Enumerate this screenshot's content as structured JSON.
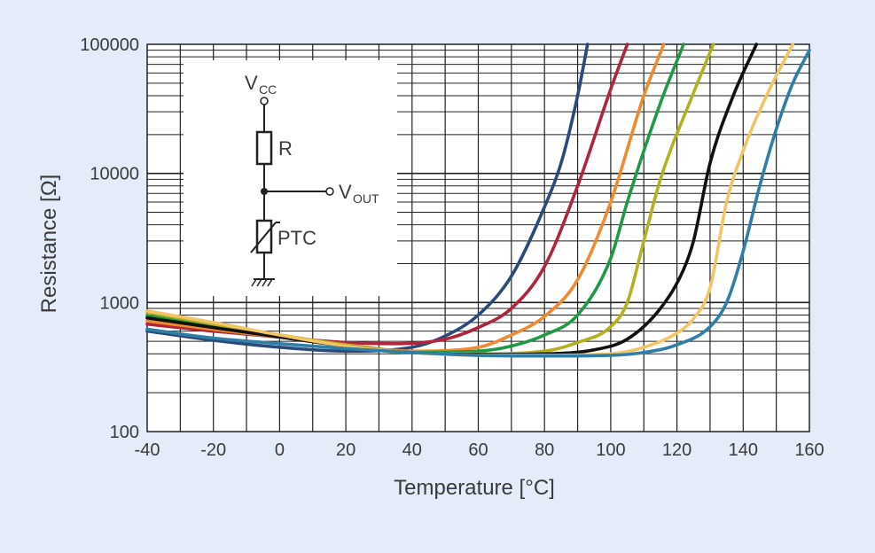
{
  "chart_data": {
    "type": "line",
    "title": "",
    "xlabel": "Temperature [°C]",
    "ylabel": "Resistance [Ω]",
    "xlim": [
      -40,
      160
    ],
    "ylim": [
      100,
      100000
    ],
    "yscale": "log",
    "grid": true,
    "x_ticks": [
      "-40",
      "-20",
      "0",
      "20",
      "40",
      "60",
      "80",
      "100",
      "120",
      "140",
      "160"
    ],
    "y_ticks": [
      "100",
      "1000",
      "10000",
      "100000"
    ],
    "colors": [
      "#2a4a7a",
      "#b0243c",
      "#f08a30",
      "#1f9a44",
      "#b3b21e",
      "#111111",
      "#f2c665",
      "#2e7ea8"
    ],
    "series": [
      {
        "points": [
          [
            -40,
            600
          ],
          [
            -20,
            510
          ],
          [
            0,
            450
          ],
          [
            20,
            420
          ],
          [
            40,
            450
          ],
          [
            50,
            550
          ],
          [
            60,
            800
          ],
          [
            70,
            1600
          ],
          [
            80,
            5500
          ],
          [
            85,
            12000
          ],
          [
            90,
            40000
          ],
          [
            93,
            100000
          ]
        ]
      },
      {
        "points": [
          [
            -40,
            680
          ],
          [
            -20,
            600
          ],
          [
            0,
            540
          ],
          [
            20,
            490
          ],
          [
            35,
            480
          ],
          [
            50,
            520
          ],
          [
            60,
            640
          ],
          [
            70,
            900
          ],
          [
            80,
            1900
          ],
          [
            90,
            8000
          ],
          [
            100,
            45000
          ],
          [
            105,
            100000
          ]
        ]
      },
      {
        "points": [
          [
            -40,
            720
          ],
          [
            -20,
            620
          ],
          [
            0,
            540
          ],
          [
            20,
            470
          ],
          [
            40,
            420
          ],
          [
            60,
            450
          ],
          [
            70,
            560
          ],
          [
            80,
            780
          ],
          [
            90,
            1500
          ],
          [
            100,
            6000
          ],
          [
            110,
            40000
          ],
          [
            116,
            100000
          ]
        ]
      },
      {
        "points": [
          [
            -40,
            790
          ],
          [
            -20,
            670
          ],
          [
            0,
            560
          ],
          [
            20,
            460
          ],
          [
            40,
            410
          ],
          [
            60,
            420
          ],
          [
            70,
            460
          ],
          [
            80,
            560
          ],
          [
            90,
            800
          ],
          [
            100,
            2200
          ],
          [
            105,
            6000
          ],
          [
            115,
            35000
          ],
          [
            122,
            100000
          ]
        ]
      },
      {
        "points": [
          [
            -40,
            840
          ],
          [
            -20,
            680
          ],
          [
            0,
            560
          ],
          [
            20,
            470
          ],
          [
            40,
            410
          ],
          [
            60,
            400
          ],
          [
            80,
            420
          ],
          [
            90,
            490
          ],
          [
            100,
            650
          ],
          [
            105,
            1000
          ],
          [
            110,
            3000
          ],
          [
            115,
            9000
          ],
          [
            125,
            42000
          ],
          [
            131,
            100000
          ]
        ]
      },
      {
        "points": [
          [
            -40,
            760
          ],
          [
            -20,
            640
          ],
          [
            0,
            540
          ],
          [
            20,
            460
          ],
          [
            40,
            410
          ],
          [
            60,
            395
          ],
          [
            80,
            400
          ],
          [
            95,
            430
          ],
          [
            105,
            520
          ],
          [
            115,
            900
          ],
          [
            122,
            1800
          ],
          [
            125,
            3000
          ],
          [
            130,
            12000
          ],
          [
            137,
            40000
          ],
          [
            144,
            100000
          ]
        ]
      },
      {
        "points": [
          [
            -40,
            860
          ],
          [
            -20,
            700
          ],
          [
            0,
            560
          ],
          [
            20,
            460
          ],
          [
            40,
            410
          ],
          [
            60,
            390
          ],
          [
            80,
            390
          ],
          [
            100,
            400
          ],
          [
            110,
            450
          ],
          [
            120,
            580
          ],
          [
            125,
            750
          ],
          [
            130,
            1300
          ],
          [
            135,
            6000
          ],
          [
            140,
            15000
          ],
          [
            148,
            45000
          ],
          [
            155,
            100000
          ]
        ]
      },
      {
        "points": [
          [
            -40,
            620
          ],
          [
            -20,
            530
          ],
          [
            0,
            480
          ],
          [
            20,
            440
          ],
          [
            40,
            410
          ],
          [
            60,
            390
          ],
          [
            80,
            385
          ],
          [
            100,
            390
          ],
          [
            110,
            410
          ],
          [
            120,
            470
          ],
          [
            130,
            650
          ],
          [
            135,
            1000
          ],
          [
            140,
            2500
          ],
          [
            145,
            8000
          ],
          [
            150,
            22000
          ],
          [
            155,
            50000
          ],
          [
            160,
            90000
          ]
        ]
      }
    ],
    "inset": {
      "vcc_main": "V",
      "vcc_sub": "CC",
      "r_label": "R",
      "vout_main": "V",
      "vout_sub": "OUT",
      "ptc_label": "PTC"
    }
  }
}
